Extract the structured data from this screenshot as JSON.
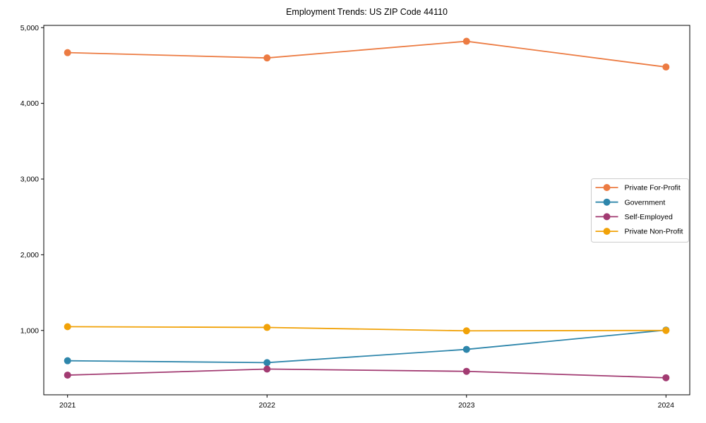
{
  "title": "Employment Trends: US ZIP Code 44110",
  "chart_data": {
    "type": "line",
    "title": "Employment Trends: US ZIP Code 44110",
    "xlabel": "",
    "ylabel": "",
    "categories": [
      "2021",
      "2022",
      "2023",
      "2024"
    ],
    "series": [
      {
        "name": "Private For-Profit",
        "color": "#EC7B42",
        "values": [
          4670,
          4600,
          4820,
          4480
        ]
      },
      {
        "name": "Government",
        "color": "#2E86AB",
        "values": [
          600,
          575,
          750,
          1005
        ]
      },
      {
        "name": "Self-Employed",
        "color": "#A23B72",
        "values": [
          410,
          490,
          460,
          375
        ]
      },
      {
        "name": "Private Non-Profit",
        "color": "#F1A208",
        "values": [
          1050,
          1040,
          995,
          1000
        ]
      }
    ],
    "ylim": [
      150,
      5030
    ],
    "yticks": [
      1000,
      2000,
      3000,
      4000,
      5000
    ],
    "ytick_labels": [
      "1,000",
      "2,000",
      "3,000",
      "4,000",
      "5,000"
    ],
    "grid": false,
    "legend_position": "center right",
    "marker": "circle",
    "axis_color": "#000000",
    "legend_border_color": "#cccccc"
  }
}
